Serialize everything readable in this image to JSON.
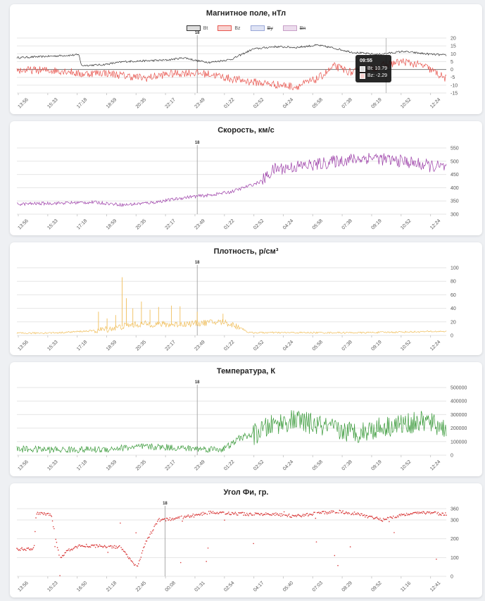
{
  "colors": {
    "bt": "#333333",
    "bz": "#e8564f",
    "by": "#9aa8d8",
    "bn": "#c8a0c8",
    "speed": "#9c3fa8",
    "density": "#f0be5a",
    "temperature": "#3a9a3a",
    "phi": "#d93a3a",
    "grid": "#e6e6e6"
  },
  "x_ticks_main": [
    "13:56",
    "15:33",
    "17:18",
    "18:59",
    "20:35",
    "22:17",
    "23:49",
    "01:22",
    "02:52",
    "04:24",
    "05:58",
    "07:38",
    "09:19",
    "10:52",
    "12:24"
  ],
  "x_ticks_phi": [
    "13:56",
    "15:23",
    "16:50",
    "21:18",
    "22:45",
    "00:08",
    "01:31",
    "02:54",
    "04:17",
    "05:40",
    "07:03",
    "08:29",
    "09:52",
    "11:16",
    "12:41"
  ],
  "marker_label": "18",
  "charts": [
    {
      "id": "magnetic",
      "title": "Магнитное поле, нТл",
      "legend": [
        {
          "label": "Bt",
          "color": "#333333",
          "fill": "#dddddd",
          "hidden": false
        },
        {
          "label": "Bz",
          "color": "#e8564f",
          "fill": "#f7d3d1",
          "hidden": false
        },
        {
          "label": "By",
          "color": "#9aa8d8",
          "fill": "#dfe3f4",
          "hidden": true
        },
        {
          "label": "Bn",
          "color": "#c8a0c8",
          "fill": "#ecdced",
          "hidden": true
        }
      ],
      "tooltip": {
        "time": "09:55",
        "rows": [
          "Bt: 10.79",
          "Bz: -2.29"
        ]
      }
    },
    {
      "id": "speed",
      "title": "Скорость, км/с"
    },
    {
      "id": "density",
      "title": "Плотность, р/см³"
    },
    {
      "id": "temperature",
      "title": "Температура, К"
    },
    {
      "id": "phi",
      "title": "Угол Фи, гр."
    }
  ],
  "chart_data": [
    {
      "type": "line",
      "title": "Магнитное поле, нТл",
      "ylim": [
        -15,
        20
      ],
      "yticks": [
        20,
        15,
        10,
        5,
        0,
        -5,
        -10,
        -15
      ],
      "series": [
        {
          "name": "Bt",
          "points": [
            [
              0,
              7.5
            ],
            [
              0.06,
              8.2
            ],
            [
              0.12,
              9
            ],
            [
              0.145,
              9.3
            ],
            [
              0.15,
              2.5
            ],
            [
              0.2,
              3
            ],
            [
              0.25,
              5
            ],
            [
              0.3,
              5.5
            ],
            [
              0.35,
              6
            ],
            [
              0.39,
              7.5
            ],
            [
              0.42,
              5.5
            ],
            [
              0.45,
              4.5
            ],
            [
              0.5,
              6.5
            ],
            [
              0.55,
              13
            ],
            [
              0.6,
              14.5
            ],
            [
              0.65,
              14
            ],
            [
              0.7,
              15.5
            ],
            [
              0.74,
              13.5
            ],
            [
              0.78,
              11
            ],
            [
              0.84,
              9.5
            ],
            [
              0.9,
              11.5
            ],
            [
              0.95,
              10
            ],
            [
              1.0,
              9
            ]
          ]
        },
        {
          "name": "Bz",
          "points": [
            [
              0,
              -0.5
            ],
            [
              0.06,
              -0.5
            ],
            [
              0.12,
              -1
            ],
            [
              0.145,
              -3
            ],
            [
              0.2,
              -2
            ],
            [
              0.25,
              -4
            ],
            [
              0.3,
              -5.5
            ],
            [
              0.35,
              -3
            ],
            [
              0.4,
              -2
            ],
            [
              0.45,
              -3
            ],
            [
              0.5,
              -6
            ],
            [
              0.55,
              -8
            ],
            [
              0.6,
              -9.5
            ],
            [
              0.65,
              -11
            ],
            [
              0.7,
              -6
            ],
            [
              0.74,
              2
            ],
            [
              0.78,
              -2
            ],
            [
              0.82,
              0
            ],
            [
              0.86,
              3
            ],
            [
              0.9,
              5
            ],
            [
              0.95,
              2
            ],
            [
              1.0,
              -6
            ]
          ]
        }
      ]
    },
    {
      "type": "line",
      "title": "Скорость, км/с",
      "ylim": [
        300,
        550
      ],
      "yticks": [
        550,
        500,
        450,
        400,
        350,
        300
      ],
      "series": [
        {
          "name": "",
          "points": [
            [
              0,
              338
            ],
            [
              0.1,
              342
            ],
            [
              0.18,
              345
            ],
            [
              0.25,
              335
            ],
            [
              0.32,
              345
            ],
            [
              0.4,
              365
            ],
            [
              0.45,
              372
            ],
            [
              0.5,
              385
            ],
            [
              0.55,
              412
            ],
            [
              0.57,
              425
            ],
            [
              0.6,
              470
            ],
            [
              0.65,
              480
            ],
            [
              0.7,
              488
            ],
            [
              0.75,
              502
            ],
            [
              0.8,
              510
            ],
            [
              0.83,
              515
            ],
            [
              0.86,
              505
            ],
            [
              0.9,
              500
            ],
            [
              0.95,
              485
            ],
            [
              1.0,
              475
            ]
          ]
        }
      ]
    },
    {
      "type": "line",
      "title": "Плотность, р/см³",
      "ylim": [
        0,
        100
      ],
      "yticks": [
        100,
        80,
        60,
        40,
        20,
        0
      ],
      "series": [
        {
          "name": "",
          "points": [
            [
              0,
              3
            ],
            [
              0.1,
              4
            ],
            [
              0.18,
              7
            ],
            [
              0.22,
              10
            ],
            [
              0.26,
              15
            ],
            [
              0.3,
              17
            ],
            [
              0.36,
              16
            ],
            [
              0.42,
              18
            ],
            [
              0.48,
              20
            ],
            [
              0.52,
              12
            ],
            [
              0.54,
              4
            ],
            [
              0.6,
              4
            ],
            [
              0.7,
              4
            ],
            [
              0.8,
              4
            ],
            [
              0.9,
              5
            ],
            [
              1.0,
              6
            ]
          ]
        },
        {
          "name": "spikes",
          "points": [
            [
              0.19,
              35
            ],
            [
              0.21,
              25
            ],
            [
              0.23,
              30
            ],
            [
              0.245,
              86
            ],
            [
              0.255,
              55
            ],
            [
              0.27,
              40
            ],
            [
              0.29,
              50
            ],
            [
              0.31,
              38
            ],
            [
              0.33,
              42
            ],
            [
              0.36,
              44
            ],
            [
              0.38,
              43
            ],
            [
              0.42,
              35
            ],
            [
              0.48,
              32
            ]
          ]
        }
      ]
    },
    {
      "type": "line",
      "title": "Температура, К",
      "ylim": [
        0,
        500000
      ],
      "yticks": [
        500000,
        400000,
        300000,
        200000,
        100000,
        0
      ],
      "series": [
        {
          "name": "",
          "points": [
            [
              0,
              45000
            ],
            [
              0.1,
              40000
            ],
            [
              0.2,
              42000
            ],
            [
              0.25,
              55000
            ],
            [
              0.3,
              62000
            ],
            [
              0.35,
              58000
            ],
            [
              0.4,
              50000
            ],
            [
              0.45,
              45000
            ],
            [
              0.48,
              45000
            ],
            [
              0.5,
              80000
            ],
            [
              0.52,
              130000
            ],
            [
              0.55,
              150000
            ],
            [
              0.6,
              230000
            ],
            [
              0.65,
              260000
            ],
            [
              0.7,
              220000
            ],
            [
              0.75,
              180000
            ],
            [
              0.8,
              170000
            ],
            [
              0.85,
              210000
            ],
            [
              0.9,
              230000
            ],
            [
              0.95,
              250000
            ],
            [
              1.0,
              200000
            ]
          ]
        }
      ]
    },
    {
      "type": "scatter",
      "title": "Угол Фи, гр.",
      "ylim": [
        0,
        360
      ],
      "yticks": [
        360,
        300,
        200,
        100,
        0
      ],
      "series": [
        {
          "name": "",
          "points": [
            [
              0,
              145
            ],
            [
              0.04,
              145
            ],
            [
              0.045,
              340
            ],
            [
              0.08,
              325
            ],
            [
              0.1,
              90
            ],
            [
              0.12,
              140
            ],
            [
              0.15,
              165
            ],
            [
              0.2,
              160
            ],
            [
              0.24,
              155
            ],
            [
              0.28,
              50
            ],
            [
              0.3,
              180
            ],
            [
              0.33,
              300
            ],
            [
              0.36,
              305
            ],
            [
              0.4,
              320
            ],
            [
              0.45,
              340
            ],
            [
              0.5,
              335
            ],
            [
              0.55,
              330
            ],
            [
              0.6,
              330
            ],
            [
              0.65,
              320
            ],
            [
              0.7,
              335
            ],
            [
              0.75,
              345
            ],
            [
              0.8,
              330
            ],
            [
              0.85,
              300
            ],
            [
              0.9,
              330
            ],
            [
              0.95,
              340
            ],
            [
              1.0,
              330
            ]
          ]
        }
      ]
    }
  ]
}
